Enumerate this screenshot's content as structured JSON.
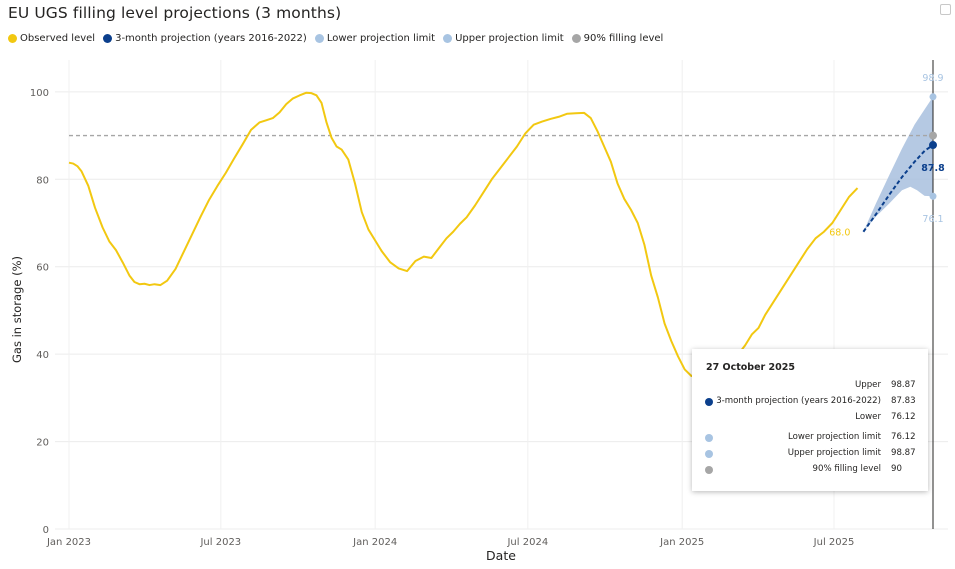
{
  "title": "EU UGS filling level projections (3 months)",
  "colors": {
    "observed": "#F2C811",
    "projection": "#0B3F8C",
    "lower": "#A8C4E2",
    "upper": "#A8C4E2",
    "target": "#A6A6A6",
    "band": "#A8C0DE"
  },
  "legend": [
    {
      "label": "Observed level",
      "color": "#F2C811"
    },
    {
      "label": "3-month projection (years 2016-2022)",
      "color": "#0B3F8C"
    },
    {
      "label": "Lower projection limit",
      "color": "#A8C4E2"
    },
    {
      "label": "Upper projection limit",
      "color": "#A8C4E2"
    },
    {
      "label": "90% filling level",
      "color": "#A6A6A6"
    }
  ],
  "tooltip": {
    "date": "27 October 2025",
    "rows": [
      {
        "label": "Upper",
        "value": "98.87",
        "dot": ""
      },
      {
        "label": "3-month projection (years 2016-2022)",
        "value": "87.83",
        "dot": "#0B3F8C"
      },
      {
        "label": "Lower",
        "value": "76.12",
        "dot": ""
      },
      {
        "label": "Lower projection limit",
        "value": "76.12",
        "dot": "#A8C4E2"
      },
      {
        "label": "Upper projection limit",
        "value": "98.87",
        "dot": "#A8C4E2"
      },
      {
        "label": "90% filling level",
        "value": "90",
        "dot": "#A6A6A6"
      }
    ]
  },
  "chart_data": {
    "type": "line",
    "xlabel": "Date",
    "ylabel": "Gas in storage (%)",
    "ylim": [
      0,
      105
    ],
    "yticks": [
      0,
      20,
      40,
      60,
      80,
      100
    ],
    "xlim": [
      "2023-01-01",
      "2025-10-27"
    ],
    "xticks": [
      {
        "date": "2023-01-01",
        "label": "Jan 2023"
      },
      {
        "date": "2023-07-01",
        "label": "Jul 2023"
      },
      {
        "date": "2024-01-01",
        "label": "Jan 2024"
      },
      {
        "date": "2024-07-01",
        "label": "Jul 2024"
      },
      {
        "date": "2025-01-01",
        "label": "Jan 2025"
      },
      {
        "date": "2025-07-01",
        "label": "Jul 2025"
      }
    ],
    "grid": true,
    "legend_position": "top-left",
    "series": [
      {
        "name": "Observed level",
        "x": [
          "2023-01-01",
          "2023-01-06",
          "2023-01-11",
          "2023-01-16",
          "2023-01-24",
          "2023-02-01",
          "2023-02-10",
          "2023-02-18",
          "2023-02-26",
          "2023-03-06",
          "2023-03-14",
          "2023-03-20",
          "2023-03-26",
          "2023-04-01",
          "2023-04-07",
          "2023-04-13",
          "2023-04-20",
          "2023-04-28",
          "2023-05-08",
          "2023-05-18",
          "2023-05-28",
          "2023-06-07",
          "2023-06-17",
          "2023-06-27",
          "2023-07-07",
          "2023-07-17",
          "2023-07-27",
          "2023-08-06",
          "2023-08-16",
          "2023-08-24",
          "2023-09-01",
          "2023-09-09",
          "2023-09-17",
          "2023-09-25",
          "2023-10-03",
          "2023-10-11",
          "2023-10-17",
          "2023-10-23",
          "2023-10-29",
          "2023-11-04",
          "2023-11-10",
          "2023-11-16",
          "2023-11-22",
          "2023-11-30",
          "2023-12-08",
          "2023-12-16",
          "2023-12-24",
          "2024-01-01",
          "2024-01-09",
          "2024-01-19",
          "2024-01-29",
          "2024-02-08",
          "2024-02-18",
          "2024-02-28",
          "2024-03-08",
          "2024-03-18",
          "2024-03-26",
          "2024-04-03",
          "2024-04-11",
          "2024-04-19",
          "2024-04-29",
          "2024-05-09",
          "2024-05-19",
          "2024-05-29",
          "2024-06-08",
          "2024-06-18",
          "2024-06-28",
          "2024-07-08",
          "2024-07-18",
          "2024-07-28",
          "2024-08-07",
          "2024-08-17",
          "2024-08-27",
          "2024-09-06",
          "2024-09-14",
          "2024-09-22",
          "2024-09-30",
          "2024-10-08",
          "2024-10-16",
          "2024-10-24",
          "2024-11-01",
          "2024-11-09",
          "2024-11-17",
          "2024-11-25",
          "2024-12-03",
          "2024-12-11",
          "2024-12-19",
          "2024-12-27",
          "2025-01-04",
          "2025-01-12",
          "2025-01-20",
          "2025-01-28",
          "2025-02-05",
          "2025-02-13",
          "2025-02-21",
          "2025-03-01",
          "2025-03-09",
          "2025-03-17",
          "2025-03-25",
          "2025-04-02",
          "2025-04-10",
          "2025-04-20",
          "2025-04-30",
          "2025-05-10",
          "2025-05-20",
          "2025-05-30",
          "2025-06-09",
          "2025-06-19",
          "2025-06-29",
          "2025-07-09",
          "2025-07-19",
          "2025-07-29",
          "2025-08-08",
          "2025-08-18",
          "2025-08-27"
        ],
        "values": [
          83.8,
          83.6,
          83.0,
          81.8,
          78.5,
          73.5,
          69.0,
          65.8,
          63.8,
          61.0,
          58.0,
          56.5,
          56.0,
          56.1,
          55.8,
          56.0,
          55.8,
          56.8,
          59.5,
          63.5,
          67.5,
          71.5,
          75.3,
          78.5,
          81.5,
          84.8,
          88.0,
          91.3,
          93.0,
          93.5,
          94.0,
          95.3,
          97.2,
          98.5,
          99.2,
          99.8,
          99.7,
          99.2,
          97.5,
          93.0,
          89.5,
          87.5,
          86.8,
          84.5,
          79.0,
          72.5,
          68.5,
          66.0,
          63.5,
          61.0,
          59.6,
          59.0,
          61.3,
          62.3,
          62.0,
          64.5,
          66.5,
          68.0,
          69.8,
          71.3,
          74.0,
          77.0,
          80.0,
          82.5,
          85.0,
          87.5,
          90.5,
          92.5,
          93.2,
          93.8,
          94.3,
          95.0,
          95.1,
          95.2,
          94.0,
          91.0,
          87.5,
          84.0,
          79.0,
          75.5,
          73.0,
          70.0,
          65.0,
          58.0,
          53.0,
          47.0,
          43.0,
          39.5,
          36.5,
          35.0,
          35.3,
          35.0,
          35.5,
          36.0,
          37.0,
          38.0,
          40.0,
          42.0,
          44.5,
          46.0,
          49.0,
          52.0,
          55.0,
          58.0,
          61.0,
          64.0,
          66.5,
          68.0,
          70.0,
          73.0,
          76.0,
          78.0,
          80.0,
          82.0,
          84.0
        ],
        "visible_until": "2025-08-05"
      },
      {
        "name": "3-month projection (years 2016-2022)",
        "x": [
          "2025-08-05",
          "2025-08-20",
          "2025-09-05",
          "2025-09-20",
          "2025-10-05",
          "2025-10-17",
          "2025-10-27"
        ],
        "values": [
          68.0,
          72.0,
          76.5,
          80.5,
          84.0,
          86.5,
          87.83
        ]
      },
      {
        "name": "Lower projection limit",
        "x": [
          "2025-08-05",
          "2025-08-20",
          "2025-09-05",
          "2025-09-20",
          "2025-09-30",
          "2025-10-08",
          "2025-10-17",
          "2025-10-27"
        ],
        "values": [
          68.0,
          71.5,
          74.5,
          77.5,
          78.3,
          77.5,
          76.2,
          76.12
        ]
      },
      {
        "name": "Upper projection limit",
        "x": [
          "2025-08-05",
          "2025-08-20",
          "2025-09-05",
          "2025-09-20",
          "2025-10-05",
          "2025-10-17",
          "2025-10-27"
        ],
        "values": [
          68.0,
          74.5,
          81.0,
          87.0,
          92.5,
          96.0,
          98.87
        ]
      },
      {
        "name": "90% filling level",
        "x": [
          "2023-01-01",
          "2025-10-27"
        ],
        "values": [
          90,
          90
        ]
      }
    ],
    "annotations": [
      {
        "text": "68.0",
        "x": "2025-08-05",
        "y": 68.0,
        "color": "#F2C811"
      },
      {
        "text": "98.9",
        "x": "2025-10-27",
        "y": 98.87,
        "color": "#A8C4E2"
      },
      {
        "text": "87.8",
        "x": "2025-10-27",
        "y": 87.83,
        "color": "#0B3F8C"
      },
      {
        "text": "76.1",
        "x": "2025-10-27",
        "y": 76.12,
        "color": "#A8C4E2"
      }
    ]
  }
}
